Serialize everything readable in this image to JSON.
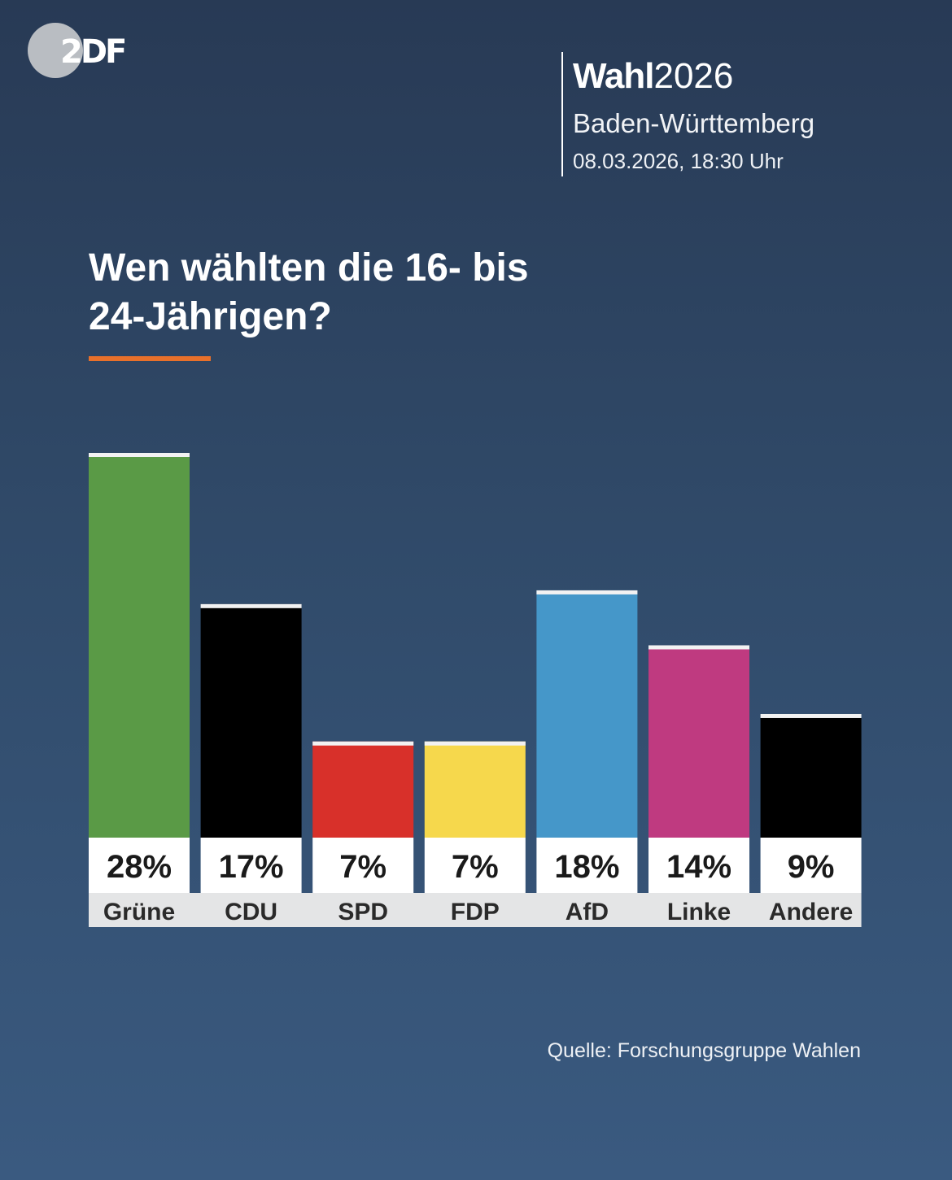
{
  "brand": {
    "logo_text": "2DF",
    "logo_name": "ZDF"
  },
  "header": {
    "title_bold": "Wahl",
    "title_year": "2026",
    "region": "Baden-Württemberg",
    "datetime": "08.03.2026, 18:30 Uhr"
  },
  "chart_data": {
    "type": "bar",
    "title": "Wen wählten die 16- bis 24-Jährigen?",
    "title_line1": "Wen wählten die 16- bis",
    "title_line2": "24-Jährigen?",
    "categories": [
      "Grüne",
      "CDU",
      "SPD",
      "FDP",
      "AfD",
      "Linke",
      "Andere"
    ],
    "values": [
      28,
      17,
      7,
      7,
      18,
      14,
      9
    ],
    "value_labels": [
      "28%",
      "17%",
      "7%",
      "7%",
      "18%",
      "14%",
      "9%"
    ],
    "colors": [
      "#5a9a46",
      "#000000",
      "#d8302a",
      "#f6d84c",
      "#4597c9",
      "#bf3a80",
      "#000000"
    ],
    "accent_color": "#e8702a",
    "unit": "%",
    "ylim": [
      0,
      28
    ],
    "grid": false,
    "xlabel": "",
    "ylabel": ""
  },
  "footer": {
    "source": "Quelle: Forschungsgruppe Wahlen"
  }
}
